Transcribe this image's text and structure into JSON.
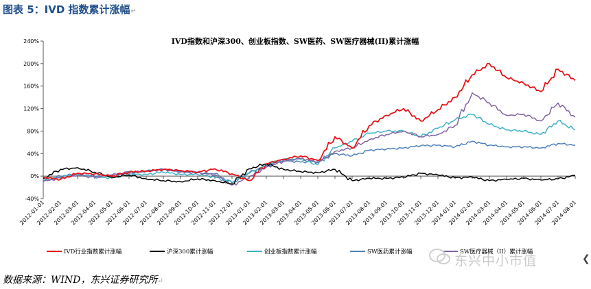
{
  "figure": {
    "title": "图表 5：IVD 指数累计涨幅",
    "source": "数据来源：WIND，东兴证券研究所",
    "para_mark": "↵",
    "watermark": "东兴中小市值"
  },
  "chart_data": {
    "type": "line",
    "title": "IVD指数和沪深300、创业板指数、SW医药、SW医疗器械(II)累计涨幅",
    "xlabel": "",
    "ylabel": "",
    "x_ticks": [
      "2012-01-01",
      "2012-02-01",
      "2012-03-01",
      "2012-04-01",
      "2012-05-01",
      "2012-06-01",
      "2012-07-01",
      "2012-08-01",
      "2012-09-01",
      "2012-10-01",
      "2012-11-01",
      "2012-12-01",
      "2013-01-01",
      "2013-02-01",
      "2013-03-01",
      "2013-04-01",
      "2013-05-01",
      "2013-06-01",
      "2013-07-01",
      "2013-08-01",
      "2013-09-01",
      "2013-10-01",
      "2013-11-01",
      "2013-12-01",
      "2014-01-01",
      "2014-02-01",
      "2014-03-01",
      "2014-04-01",
      "2014-05-01",
      "2014-06-01",
      "2014-07-01",
      "2014-08-01"
    ],
    "y_ticks": [
      "-40%",
      "0%",
      "40%",
      "80%",
      "120%",
      "160%",
      "200%",
      "240%"
    ],
    "ylim": [
      -40,
      240
    ],
    "grid": false,
    "legend_position": "bottom",
    "series": [
      {
        "name": "IVD行业指数累计涨幅",
        "color": "#e8141a",
        "values": [
          -2,
          -6,
          5,
          4,
          0,
          7,
          9,
          12,
          10,
          7,
          13,
          4,
          -8,
          22,
          30,
          36,
          28,
          70,
          50,
          90,
          108,
          120,
          98,
          118,
          140,
          180,
          200,
          175,
          165,
          150,
          190,
          170
        ]
      },
      {
        "name": "沪深300累计涨幅",
        "color": "#000000",
        "values": [
          -4,
          12,
          15,
          7,
          -2,
          2,
          -5,
          -8,
          -10,
          -5,
          -8,
          -14,
          13,
          22,
          12,
          8,
          6,
          12,
          -8,
          -4,
          -4,
          -2,
          5,
          2,
          -3,
          -2,
          -8,
          -6,
          -4,
          -7,
          -5,
          1
        ]
      },
      {
        "name": "创业板指数累计涨幅",
        "color": "#3fb1c6",
        "values": [
          -7,
          -2,
          3,
          -2,
          -3,
          3,
          3,
          7,
          3,
          3,
          -2,
          -11,
          5,
          20,
          30,
          30,
          20,
          50,
          62,
          76,
          80,
          80,
          70,
          85,
          100,
          110,
          92,
          82,
          80,
          74,
          98,
          82
        ]
      },
      {
        "name": "SW医药累计涨幅",
        "color": "#4f81bd",
        "values": [
          -8,
          0,
          4,
          0,
          2,
          5,
          9,
          12,
          8,
          6,
          4,
          -12,
          6,
          18,
          28,
          25,
          26,
          40,
          36,
          46,
          48,
          50,
          54,
          55,
          52,
          62,
          55,
          52,
          52,
          50,
          58,
          55
        ]
      },
      {
        "name": "SW医疗器械（II）累计涨幅",
        "color": "#8064a2",
        "values": [
          -10,
          -3,
          1,
          -2,
          2,
          8,
          8,
          12,
          7,
          6,
          2,
          -16,
          -2,
          16,
          26,
          32,
          24,
          44,
          50,
          65,
          74,
          80,
          70,
          74,
          90,
          148,
          130,
          108,
          110,
          98,
          130,
          105
        ]
      }
    ]
  }
}
